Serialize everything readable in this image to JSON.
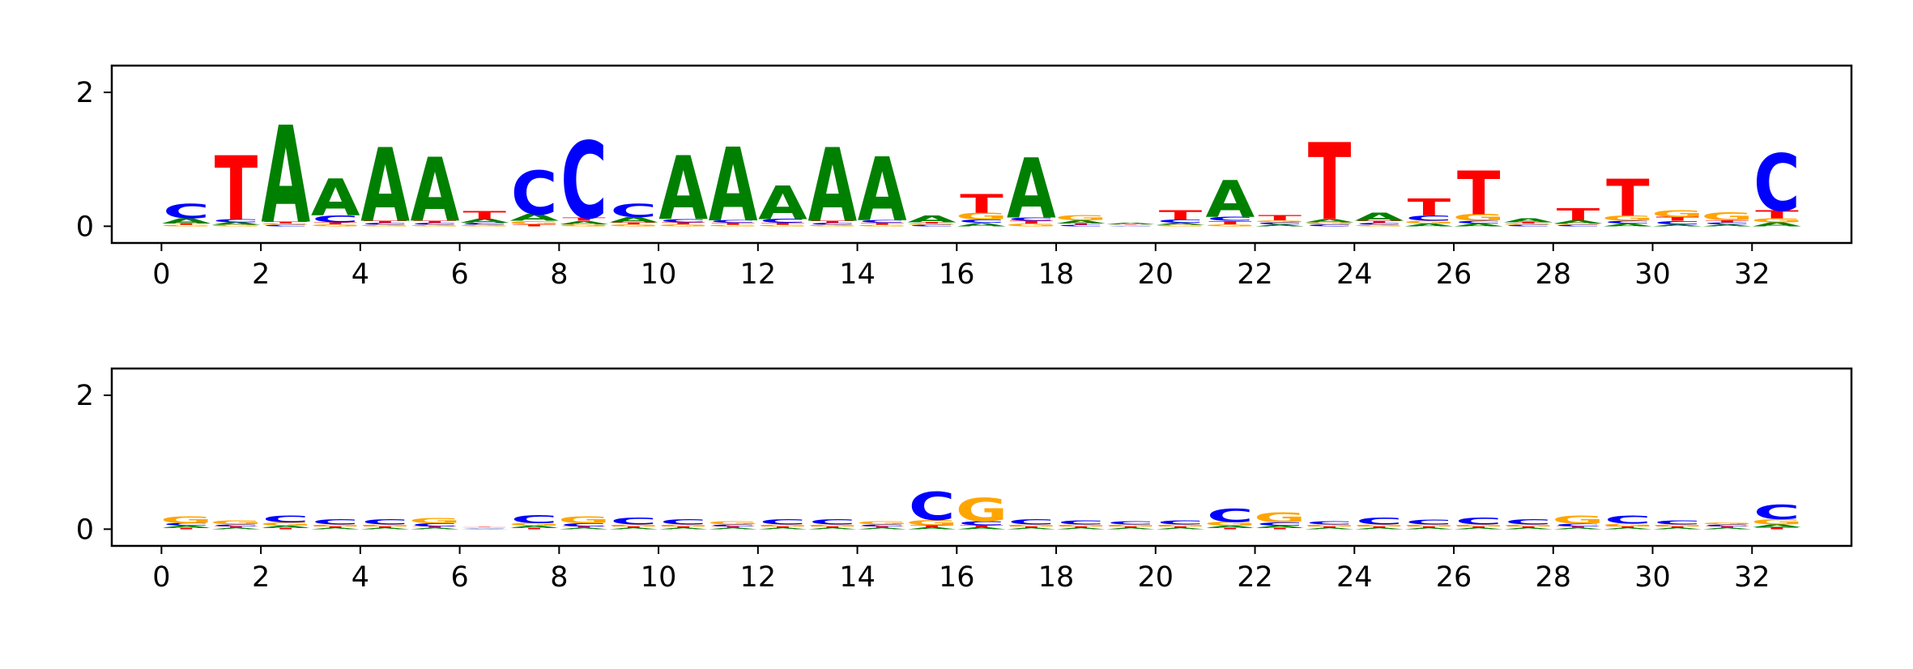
{
  "chart_data": [
    {
      "type": "sequence-logo",
      "title": "",
      "xlabel": "",
      "ylabel": "",
      "xlim": [
        -1,
        34
      ],
      "ylim": [
        -0.25,
        2.4
      ],
      "x_ticks": [
        0,
        2,
        4,
        6,
        8,
        10,
        12,
        14,
        16,
        18,
        20,
        22,
        24,
        26,
        28,
        30,
        32
      ],
      "y_ticks": [
        0,
        2
      ],
      "letter_colors": {
        "A": "#008000",
        "C": "#0000ff",
        "G": "#ffa500",
        "T": "#ff0000"
      },
      "positions": [
        {
          "pos": 0,
          "A": 0.08,
          "C": 0.22,
          "G": 0.02,
          "T": 0.02
        },
        {
          "pos": 1,
          "A": 0.04,
          "C": 0.05,
          "G": 0.02,
          "T": 0.95
        },
        {
          "pos": 2,
          "A": 1.45,
          "C": 0.02,
          "G": 0.02,
          "T": 0.03
        },
        {
          "pos": 3,
          "A": 0.55,
          "C": 0.1,
          "G": 0.03,
          "T": 0.03
        },
        {
          "pos": 4,
          "A": 1.1,
          "C": 0.03,
          "G": 0.02,
          "T": 0.03
        },
        {
          "pos": 5,
          "A": 0.95,
          "C": 0.03,
          "G": 0.02,
          "T": 0.03
        },
        {
          "pos": 6,
          "A": 0.06,
          "C": 0.03,
          "G": 0.02,
          "T": 0.12
        },
        {
          "pos": 7,
          "A": 0.1,
          "C": 0.65,
          "G": 0.05,
          "T": 0.03
        },
        {
          "pos": 8,
          "A": 0.05,
          "C": 1.15,
          "G": 0.03,
          "T": 0.05
        },
        {
          "pos": 9,
          "A": 0.08,
          "C": 0.2,
          "G": 0.03,
          "T": 0.03
        },
        {
          "pos": 10,
          "A": 0.95,
          "C": 0.05,
          "G": 0.03,
          "T": 0.03
        },
        {
          "pos": 11,
          "A": 1.1,
          "C": 0.04,
          "G": 0.02,
          "T": 0.03
        },
        {
          "pos": 12,
          "A": 0.5,
          "C": 0.06,
          "G": 0.02,
          "T": 0.03
        },
        {
          "pos": 13,
          "A": 1.1,
          "C": 0.03,
          "G": 0.02,
          "T": 0.03
        },
        {
          "pos": 14,
          "A": 0.95,
          "C": 0.04,
          "G": 0.02,
          "T": 0.03
        },
        {
          "pos": 15,
          "A": 0.1,
          "C": 0.02,
          "G": 0.02,
          "T": 0.02
        },
        {
          "pos": 16,
          "A": 0.05,
          "C": 0.05,
          "G": 0.1,
          "T": 0.28
        },
        {
          "pos": 17,
          "A": 0.9,
          "C": 0.05,
          "G": 0.04,
          "T": 0.04
        },
        {
          "pos": 18,
          "A": 0.05,
          "C": 0.02,
          "G": 0.08,
          "T": 0.02
        },
        {
          "pos": 19,
          "A": 0.02,
          "C": 0.01,
          "G": 0.01,
          "T": 0.01
        },
        {
          "pos": 20,
          "A": 0.03,
          "C": 0.05,
          "G": 0.02,
          "T": 0.14
        },
        {
          "pos": 21,
          "A": 0.55,
          "C": 0.06,
          "G": 0.03,
          "T": 0.05
        },
        {
          "pos": 22,
          "A": 0.03,
          "C": 0.03,
          "G": 0.03,
          "T": 0.08
        },
        {
          "pos": 23,
          "A": 0.05,
          "C": 0.03,
          "G": 0.03,
          "T": 1.15
        },
        {
          "pos": 24,
          "A": 0.12,
          "C": 0.03,
          "G": 0.02,
          "T": 0.03
        },
        {
          "pos": 25,
          "A": 0.04,
          "C": 0.08,
          "G": 0.04,
          "T": 0.25
        },
        {
          "pos": 26,
          "A": 0.04,
          "C": 0.04,
          "G": 0.1,
          "T": 0.65
        },
        {
          "pos": 27,
          "A": 0.06,
          "C": 0.02,
          "G": 0.02,
          "T": 0.02
        },
        {
          "pos": 28,
          "A": 0.05,
          "C": 0.02,
          "G": 0.02,
          "T": 0.18
        },
        {
          "pos": 29,
          "A": 0.04,
          "C": 0.04,
          "G": 0.08,
          "T": 0.55
        },
        {
          "pos": 30,
          "A": 0.03,
          "C": 0.05,
          "G": 0.1,
          "T": 0.06
        },
        {
          "pos": 31,
          "A": 0.03,
          "C": 0.03,
          "G": 0.12,
          "T": 0.03
        },
        {
          "pos": 32,
          "A": 0.06,
          "C": 0.85,
          "G": 0.06,
          "T": 0.12
        }
      ]
    },
    {
      "type": "sequence-logo",
      "title": "",
      "xlabel": "",
      "ylabel": "",
      "xlim": [
        -1,
        34
      ],
      "ylim": [
        -0.25,
        2.4
      ],
      "x_ticks": [
        0,
        2,
        4,
        6,
        8,
        10,
        12,
        14,
        16,
        18,
        20,
        22,
        24,
        26,
        28,
        30,
        32
      ],
      "y_ticks": [
        0,
        2
      ],
      "letter_colors": {
        "A": "#008000",
        "C": "#0000ff",
        "G": "#ffa500",
        "T": "#ff0000"
      },
      "positions": [
        {
          "pos": 0,
          "A": 0.03,
          "C": 0.04,
          "G": 0.1,
          "T": 0.02
        },
        {
          "pos": 1,
          "A": 0.02,
          "C": 0.03,
          "G": 0.06,
          "T": 0.02
        },
        {
          "pos": 2,
          "A": 0.03,
          "C": 0.1,
          "G": 0.05,
          "T": 0.02
        },
        {
          "pos": 3,
          "A": 0.02,
          "C": 0.08,
          "G": 0.03,
          "T": 0.02
        },
        {
          "pos": 4,
          "A": 0.02,
          "C": 0.08,
          "G": 0.03,
          "T": 0.02
        },
        {
          "pos": 5,
          "A": 0.02,
          "C": 0.05,
          "G": 0.08,
          "T": 0.02
        },
        {
          "pos": 6,
          "A": 0.01,
          "C": 0.01,
          "G": 0.01,
          "T": 0.01
        },
        {
          "pos": 7,
          "A": 0.03,
          "C": 0.12,
          "G": 0.04,
          "T": 0.02
        },
        {
          "pos": 8,
          "A": 0.02,
          "C": 0.05,
          "G": 0.1,
          "T": 0.02
        },
        {
          "pos": 9,
          "A": 0.02,
          "C": 0.1,
          "G": 0.03,
          "T": 0.02
        },
        {
          "pos": 10,
          "A": 0.02,
          "C": 0.08,
          "G": 0.03,
          "T": 0.02
        },
        {
          "pos": 11,
          "A": 0.02,
          "C": 0.03,
          "G": 0.05,
          "T": 0.02
        },
        {
          "pos": 12,
          "A": 0.02,
          "C": 0.08,
          "G": 0.03,
          "T": 0.02
        },
        {
          "pos": 13,
          "A": 0.02,
          "C": 0.08,
          "G": 0.03,
          "T": 0.02
        },
        {
          "pos": 14,
          "A": 0.02,
          "C": 0.03,
          "G": 0.05,
          "T": 0.02
        },
        {
          "pos": 15,
          "A": 0.03,
          "C": 0.42,
          "G": 0.08,
          "T": 0.03
        },
        {
          "pos": 16,
          "A": 0.03,
          "C": 0.06,
          "G": 0.35,
          "T": 0.03
        },
        {
          "pos": 17,
          "A": 0.02,
          "C": 0.08,
          "G": 0.03,
          "T": 0.02
        },
        {
          "pos": 18,
          "A": 0.02,
          "C": 0.06,
          "G": 0.03,
          "T": 0.02
        },
        {
          "pos": 19,
          "A": 0.02,
          "C": 0.05,
          "G": 0.03,
          "T": 0.02
        },
        {
          "pos": 20,
          "A": 0.02,
          "C": 0.06,
          "G": 0.03,
          "T": 0.02
        },
        {
          "pos": 21,
          "A": 0.03,
          "C": 0.2,
          "G": 0.06,
          "T": 0.02
        },
        {
          "pos": 22,
          "A": 0.03,
          "C": 0.05,
          "G": 0.15,
          "T": 0.02
        },
        {
          "pos": 23,
          "A": 0.02,
          "C": 0.05,
          "G": 0.03,
          "T": 0.02
        },
        {
          "pos": 24,
          "A": 0.02,
          "C": 0.1,
          "G": 0.03,
          "T": 0.02
        },
        {
          "pos": 25,
          "A": 0.02,
          "C": 0.07,
          "G": 0.03,
          "T": 0.02
        },
        {
          "pos": 26,
          "A": 0.02,
          "C": 0.1,
          "G": 0.03,
          "T": 0.02
        },
        {
          "pos": 27,
          "A": 0.02,
          "C": 0.08,
          "G": 0.03,
          "T": 0.02
        },
        {
          "pos": 28,
          "A": 0.02,
          "C": 0.04,
          "G": 0.12,
          "T": 0.02
        },
        {
          "pos": 29,
          "A": 0.02,
          "C": 0.12,
          "G": 0.04,
          "T": 0.02
        },
        {
          "pos": 30,
          "A": 0.02,
          "C": 0.06,
          "G": 0.03,
          "T": 0.02
        },
        {
          "pos": 31,
          "A": 0.02,
          "C": 0.03,
          "G": 0.03,
          "T": 0.02
        },
        {
          "pos": 32,
          "A": 0.04,
          "C": 0.22,
          "G": 0.08,
          "T": 0.03
        }
      ]
    }
  ]
}
